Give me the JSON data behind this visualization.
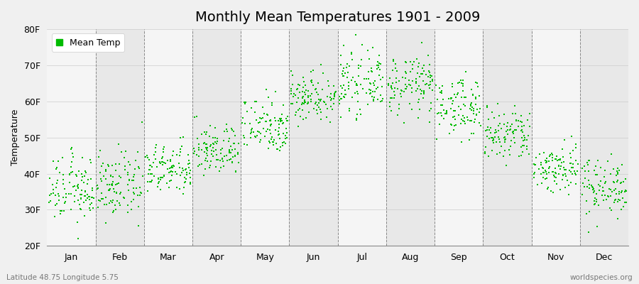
{
  "title": "Monthly Mean Temperatures 1901 - 2009",
  "ylabel": "Temperature",
  "subtitle_left": "Latitude 48.75 Longitude 5.75",
  "subtitle_right": "worldspecies.org",
  "legend_label": "Mean Temp",
  "ylim": [
    20,
    80
  ],
  "yticks": [
    20,
    30,
    40,
    50,
    60,
    70,
    80
  ],
  "ytick_labels": [
    "20F",
    "30F",
    "40F",
    "50F",
    "60F",
    "70F",
    "80F"
  ],
  "months": [
    "Jan",
    "Feb",
    "Mar",
    "Apr",
    "May",
    "Jun",
    "Jul",
    "Aug",
    "Sep",
    "Oct",
    "Nov",
    "Dec"
  ],
  "month_means_F": [
    35.5,
    36.5,
    41.0,
    46.5,
    53.5,
    61.5,
    65.0,
    64.5,
    58.5,
    50.5,
    41.5,
    36.5
  ],
  "month_stds_F": [
    4.5,
    4.5,
    3.5,
    3.5,
    4.0,
    3.5,
    4.0,
    4.0,
    4.0,
    4.0,
    3.5,
    4.0
  ],
  "n_years": 109,
  "dot_color": "#00bb00",
  "dot_size": 3,
  "background_color": "#f0f0f0",
  "plot_bg_color": "#f5f5f5",
  "band_light": "#f5f5f5",
  "band_dark": "#e8e8e8",
  "grid_color": "#888888",
  "title_fontsize": 14,
  "label_fontsize": 9,
  "tick_fontsize": 9
}
